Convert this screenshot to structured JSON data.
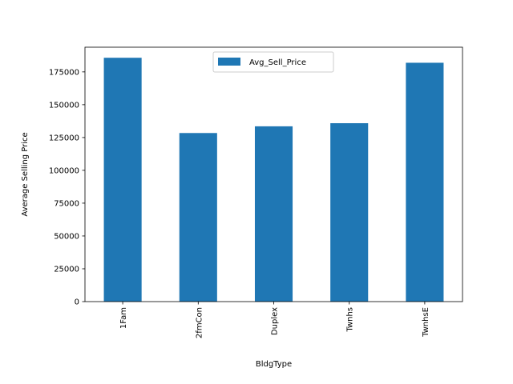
{
  "chart_data": {
    "type": "bar",
    "title": "",
    "xlabel": "BldgType",
    "ylabel": "Average Selling Price",
    "categories": [
      "1Fam",
      "2fmCon",
      "Duplex",
      "Twnhs",
      "TwnhsE"
    ],
    "series": [
      {
        "name": "Avg_Sell_Price",
        "values": [
          185763,
          128432,
          133541,
          135912,
          181959
        ],
        "color": "#1f77b4"
      }
    ],
    "ylim": [
      0,
      193808
    ],
    "yticks": [
      0,
      25000,
      50000,
      75000,
      100000,
      125000,
      150000,
      175000
    ],
    "legend": {
      "placement": "upper-center"
    },
    "grid": false
  }
}
